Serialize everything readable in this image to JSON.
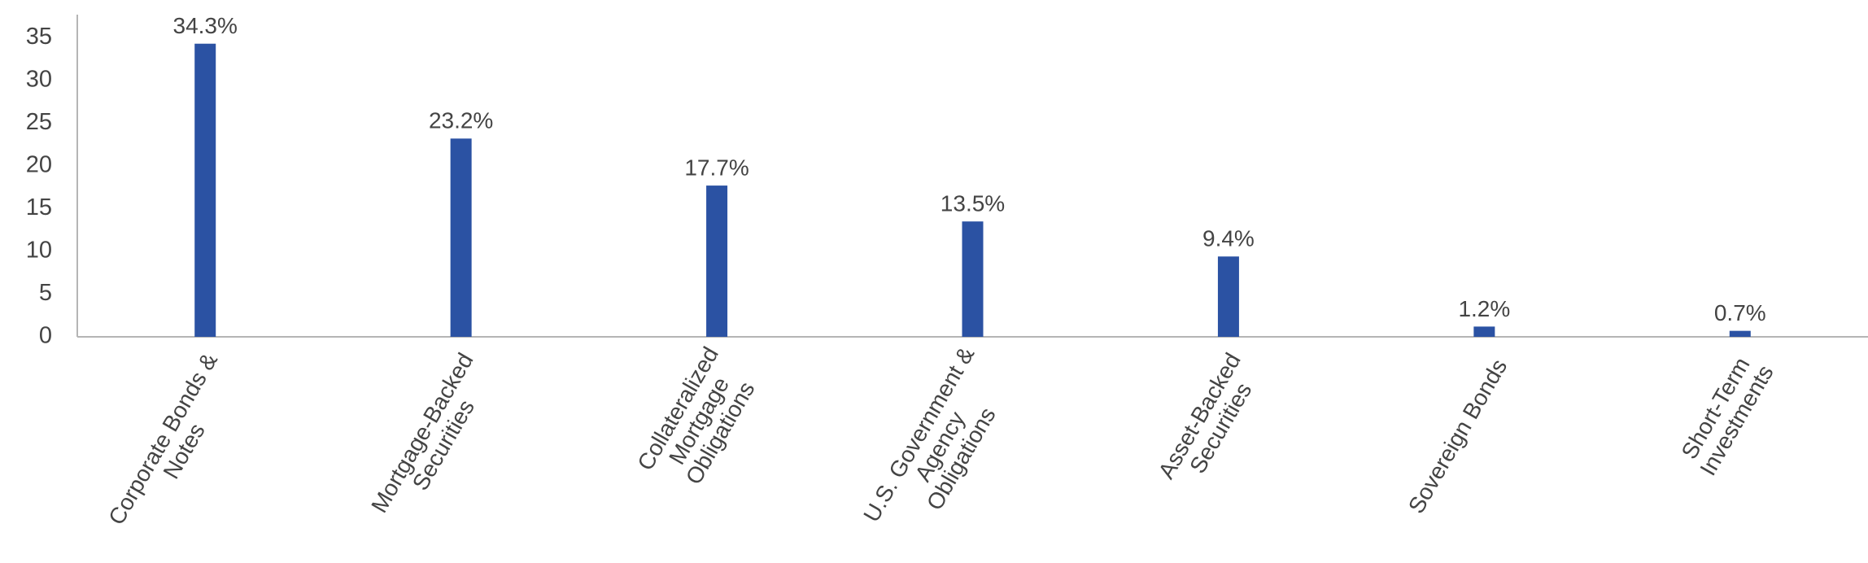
{
  "chart_data": {
    "type": "bar",
    "categories": [
      "Corporate Bonds & Notes",
      "Mortgage-Backed Securities",
      "Collateralized Mortgage Obligations",
      "U.S. Government & Agency Obligations",
      "Asset-Backed Securities",
      "Sovereign Bonds",
      "Short-Term Investments"
    ],
    "values": [
      34.3,
      23.2,
      17.7,
      13.5,
      9.4,
      1.2,
      0.7
    ],
    "value_labels": [
      "34.3%",
      "23.2%",
      "17.7%",
      "13.5%",
      "9.4%",
      "1.2%",
      "0.7%"
    ],
    "color": "#2b52a3",
    "ylim": [
      0,
      37.7
    ],
    "yticks": [
      0,
      5,
      10,
      15,
      20,
      25,
      30,
      35
    ],
    "grid": false
  }
}
